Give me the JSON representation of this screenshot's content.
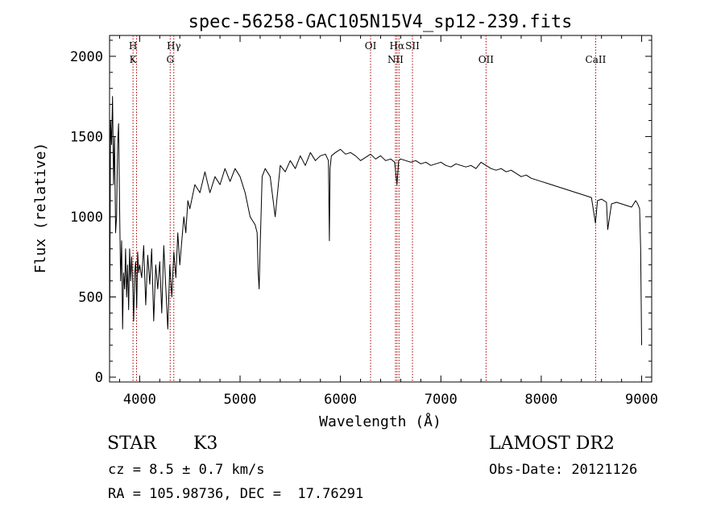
{
  "chart_data": {
    "type": "line",
    "title": "spec-56258-GAC105N15V4_sp12-239.fits",
    "xlabel": "Wavelength (Å)",
    "ylabel": "Flux (relative)",
    "xlim": [
      3700,
      9100
    ],
    "ylim": [
      -30,
      2130
    ],
    "x_ticks": [
      4000,
      5000,
      6000,
      7000,
      8000,
      9000
    ],
    "y_ticks": [
      0,
      500,
      1000,
      1500,
      2000
    ],
    "grid": false,
    "line_color": "#000000",
    "line_marker_color": "#aa0000",
    "series": [
      {
        "x": [
          3700,
          3710,
          3720,
          3730,
          3740,
          3750,
          3760,
          3770,
          3780,
          3790,
          3800,
          3810,
          3820,
          3830,
          3840,
          3850,
          3860,
          3870,
          3880,
          3890,
          3900,
          3910,
          3920,
          3930,
          3940,
          3950,
          3960,
          3970,
          3980,
          3990,
          4000,
          4020,
          4040,
          4060,
          4080,
          4100,
          4120,
          4140,
          4160,
          4180,
          4200,
          4220,
          4240,
          4260,
          4280,
          4300,
          4320,
          4340,
          4360,
          4380,
          4400,
          4420,
          4440,
          4460,
          4480,
          4500,
          4550,
          4600,
          4650,
          4700,
          4750,
          4800,
          4850,
          4900,
          4950,
          5000,
          5050,
          5100,
          5150,
          5170,
          5180,
          5190,
          5200,
          5220,
          5250,
          5300,
          5350,
          5400,
          5450,
          5500,
          5550,
          5600,
          5650,
          5700,
          5750,
          5800,
          5850,
          5880,
          5890,
          5896,
          5910,
          5950,
          6000,
          6050,
          6100,
          6150,
          6200,
          6250,
          6300,
          6350,
          6400,
          6450,
          6500,
          6540,
          6563,
          6580,
          6600,
          6650,
          6700,
          6750,
          6800,
          6850,
          6900,
          6950,
          7000,
          7050,
          7100,
          7150,
          7200,
          7250,
          7300,
          7350,
          7400,
          7450,
          7500,
          7550,
          7600,
          7650,
          7700,
          7750,
          7800,
          7850,
          7900,
          7950,
          8000,
          8050,
          8100,
          8150,
          8200,
          8250,
          8300,
          8350,
          8400,
          8450,
          8500,
          8540,
          8560,
          8600,
          8650,
          8662,
          8700,
          8750,
          8800,
          8850,
          8900,
          8940,
          8960,
          8980,
          8990,
          9000
        ],
        "y": [
          100,
          1600,
          1450,
          1750,
          1200,
          1500,
          900,
          1000,
          1450,
          1580,
          1050,
          600,
          850,
          300,
          650,
          550,
          800,
          500,
          700,
          420,
          800,
          600,
          750,
          600,
          350,
          650,
          720,
          430,
          780,
          650,
          700,
          620,
          820,
          450,
          760,
          580,
          800,
          350,
          700,
          550,
          720,
          400,
          820,
          560,
          300,
          700,
          500,
          780,
          620,
          900,
          700,
          850,
          1000,
          900,
          1100,
          1050,
          1200,
          1150,
          1280,
          1150,
          1250,
          1200,
          1300,
          1220,
          1300,
          1250,
          1150,
          1000,
          950,
          900,
          650,
          550,
          800,
          1250,
          1300,
          1250,
          1000,
          1320,
          1280,
          1350,
          1300,
          1380,
          1320,
          1400,
          1350,
          1380,
          1390,
          1350,
          850,
          1300,
          1380,
          1400,
          1420,
          1390,
          1400,
          1380,
          1350,
          1370,
          1390,
          1360,
          1380,
          1350,
          1360,
          1340,
          1200,
          1350,
          1360,
          1350,
          1340,
          1350,
          1330,
          1340,
          1320,
          1330,
          1340,
          1320,
          1310,
          1330,
          1320,
          1310,
          1320,
          1300,
          1340,
          1320,
          1300,
          1290,
          1300,
          1280,
          1290,
          1270,
          1250,
          1260,
          1240,
          1230,
          1220,
          1210,
          1200,
          1190,
          1180,
          1170,
          1160,
          1150,
          1140,
          1130,
          1120,
          960,
          1100,
          1110,
          1090,
          920,
          1080,
          1090,
          1080,
          1070,
          1060,
          1100,
          1080,
          1050,
          800,
          200
        ]
      }
    ],
    "line_labels": [
      {
        "x": 3934,
        "upper": "H",
        "lower": "K"
      },
      {
        "x": 3969,
        "upper": "",
        "lower": ""
      },
      {
        "x": 4304,
        "upper": "",
        "lower": "G"
      },
      {
        "x": 4340,
        "upper": "Hγ",
        "lower": ""
      },
      {
        "x": 6300,
        "upper": "OI",
        "lower": ""
      },
      {
        "x": 6548,
        "upper": "",
        "lower": "NII"
      },
      {
        "x": 6563,
        "upper": "Hα",
        "lower": ""
      },
      {
        "x": 6583,
        "upper": "",
        "lower": ""
      },
      {
        "x": 6717,
        "upper": "SII",
        "lower": ""
      },
      {
        "x": 7450,
        "upper": "",
        "lower": "OII"
      },
      {
        "x": 8542,
        "upper": "",
        "lower": "CaII"
      }
    ]
  },
  "info": {
    "object_class": "STAR",
    "subclass": "K3",
    "survey": "LAMOST DR2",
    "cz": "cz = 8.5 ± 0.7 km/s",
    "obs_date": "Obs-Date: 20121126",
    "coords": "RA = 105.98736, DEC =  17.76291"
  }
}
